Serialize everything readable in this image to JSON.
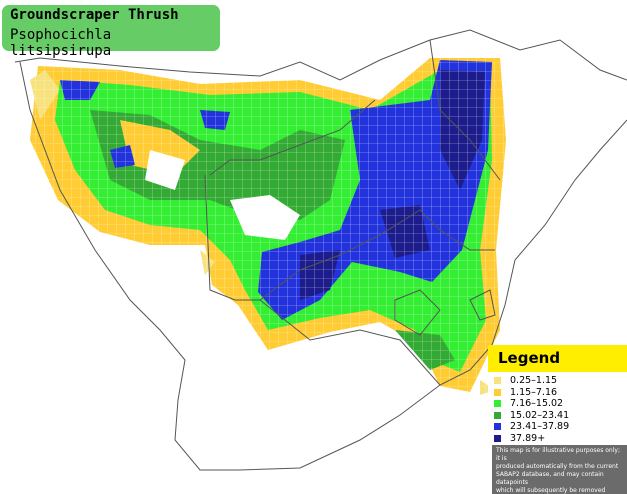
{
  "header": {
    "title": "Groundscraper Thrush",
    "subtitle": "Psophocichla litsipsirupa"
  },
  "legend": {
    "title": "Legend",
    "items": [
      {
        "label": "0.25–1.15",
        "color": "#f7e27e"
      },
      {
        "label": "1.15–7.16",
        "color": "#ffcc33"
      },
      {
        "label": "7.16–15.02",
        "color": "#33ee33"
      },
      {
        "label": "15.02–23.41",
        "color": "#33aa33"
      },
      {
        "label": "23.41–37.89",
        "color": "#2233dd"
      },
      {
        "label": "37.89+",
        "color": "#1c1c8c"
      }
    ],
    "disclaimer": [
      "This map is for illustrative purposes only; it is",
      "produced automatically from the current",
      "SABAP2 database, and may contain datapoints",
      "which will subsequently be removed during",
      "checking operations."
    ]
  }
}
